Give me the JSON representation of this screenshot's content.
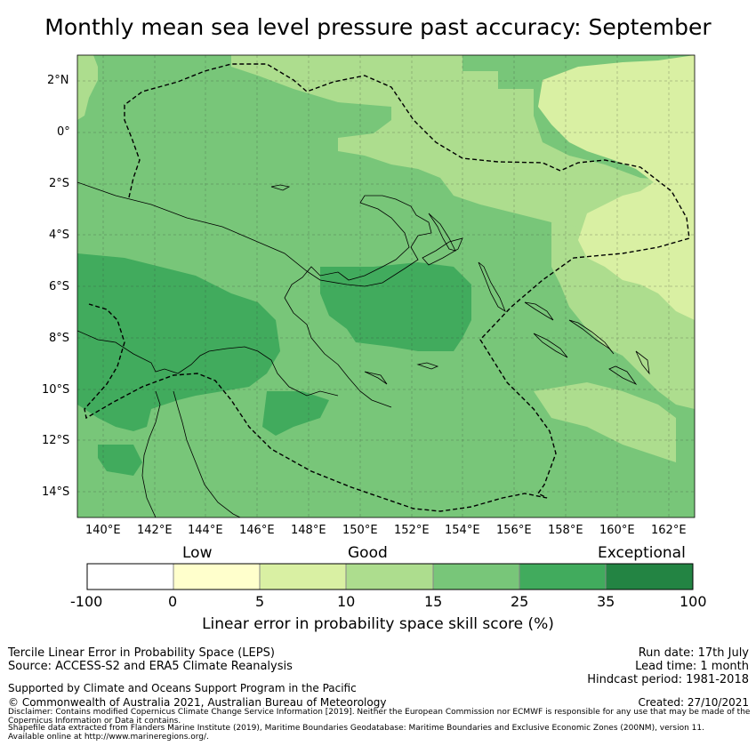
{
  "title": "Monthly mean sea level pressure past accuracy: September",
  "lat_labels": [
    "2°N",
    "0°",
    "2°S",
    "4°S",
    "6°S",
    "8°S",
    "10°S",
    "12°S",
    "14°S"
  ],
  "lon_labels": [
    "140°E",
    "142°E",
    "144°E",
    "146°E",
    "148°E",
    "150°E",
    "152°E",
    "154°E",
    "156°E",
    "158°E",
    "160°E",
    "162°E"
  ],
  "map_extent": {
    "lon_min": 139,
    "lon_max": 163,
    "lat_min": -15,
    "lat_max": 3
  },
  "colorbar": {
    "category_labels": [
      "Low",
      "Good",
      "Exceptional"
    ],
    "ticks": [
      "-100",
      "0",
      "5",
      "10",
      "15",
      "25",
      "35",
      "100"
    ],
    "colors": [
      "#ffffff",
      "#ffffcc",
      "#d9f0a3",
      "#addd8e",
      "#78c679",
      "#41ab5d",
      "#238443"
    ],
    "title": "Linear error in probability space skill score (%)"
  },
  "footer": {
    "left_line1": "Tercile Linear Error in Probability Space (LEPS)",
    "left_line2": "Source: ACCESS-S2 and ERA5 Climate Reanalysis",
    "support": "Supported by Climate and Oceans Support Program in the Pacific",
    "copyright": "© Commonwealth of Australia 2021, Australian Bureau of Meteorology",
    "run_date": "Run date: 17th July",
    "lead_time": "Lead time: 1 month",
    "hindcast": "Hindcast period: 1981-2018",
    "created": "Created: 27/10/2021",
    "disclaimer": "Disclaimer: Contains modified Copernicus Climate Change Service Information [2019]. Neither the European Commission nor ECMWF is responsible for any use that may be made of the Copernicus Information or Data it contains.",
    "shapefile": "Shapefile data extracted from Flanders Marine Institute (2019), Maritime Boundaries Geodatabase: Maritime Boundaries and Exclusive Economic Zones (200NM), version 11. Available online at http://www.marineregions.org/."
  }
}
